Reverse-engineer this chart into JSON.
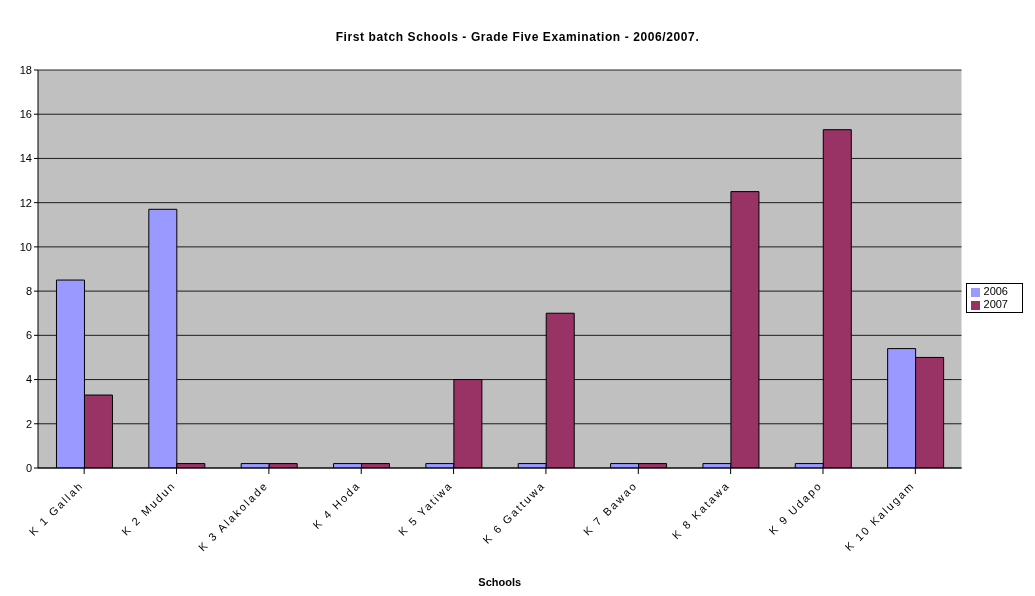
{
  "chart_data": {
    "type": "bar",
    "title": "First batch Schools - Grade Five Examination - 2006/2007.",
    "xlabel": "Schools",
    "categories": [
      "K 1 Gallah",
      "K 2 Mudun",
      "K 3 Alakolade",
      "K 4 Hoda",
      "K 5 Yatiwa",
      "K 6 Gattuwa",
      "K 7 Bawao",
      "K 8 Katawa",
      "K 9 Udapo",
      "K 10 Kalugam"
    ],
    "series": [
      {
        "name": "2006",
        "color": "#9999ff",
        "values": [
          8.5,
          11.7,
          0.2,
          0.2,
          0.2,
          0.2,
          0.2,
          0.2,
          0.2,
          5.4
        ]
      },
      {
        "name": "2007",
        "color": "#993366",
        "values": [
          3.3,
          0.2,
          0.2,
          0.2,
          4.0,
          7.0,
          0.2,
          12.5,
          15.3,
          5.0
        ]
      }
    ],
    "ylim": [
      0,
      18
    ],
    "yticks": [
      0,
      2,
      4,
      6,
      8,
      10,
      12,
      14,
      16,
      18
    ],
    "grid": "y",
    "legend": "right"
  }
}
